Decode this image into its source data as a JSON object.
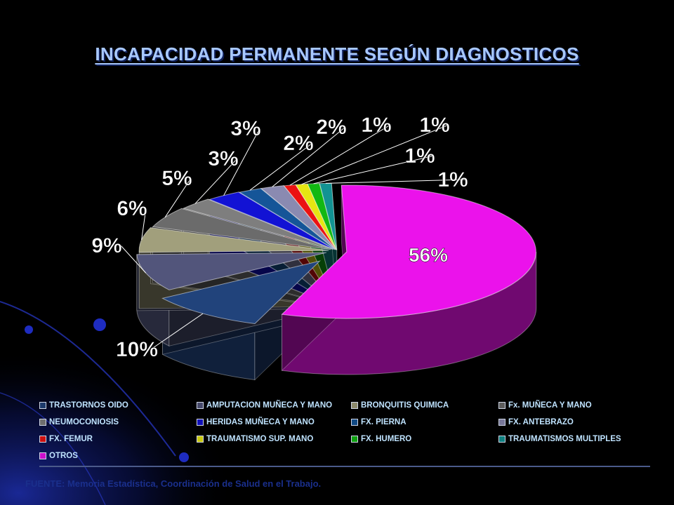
{
  "title": "INCAPACIDAD  PERMANENTE  SEGÚN  DIAGNOSTICOS",
  "source": "FUENTE: Memoria Estadística, Coordinación de Salud en el Trabajo.",
  "colors": {
    "background": "#000000",
    "title": "#a8c8ff",
    "legend_text": "#bfe3ff",
    "source_text": "#1a2f8c"
  },
  "chart_data": {
    "type": "pie",
    "style": "3d-exploded",
    "title": "",
    "legend_position": "bottom",
    "series": [
      {
        "name": "TRASTORNOS OIDO",
        "value": 10,
        "label": "10%",
        "color": "#1d3a6b"
      },
      {
        "name": "AMPUTACION MUÑECA Y MANO",
        "value": 9,
        "label": "9%",
        "color": "#474a6b"
      },
      {
        "name": "BRONQUITIS QUIMICA",
        "value": 6,
        "label": "6%",
        "color": "#8c8a6c"
      },
      {
        "name": "Fx. MUÑECA Y MANO",
        "value": 5,
        "label": "5%",
        "color": "#5d5d5d"
      },
      {
        "name": "NEUMOCONIOSIS",
        "value": 3,
        "label": "3%",
        "color": "#6e6e6e"
      },
      {
        "name": "HERIDAS MUÑECA Y MANO",
        "value": 3,
        "label": "3%",
        "color": "#1010b8"
      },
      {
        "name": "FX. PIERNA",
        "value": 2,
        "label": "2%",
        "color": "#124a84"
      },
      {
        "name": "FX. ANTEBRAZO",
        "value": 2,
        "label": "2%",
        "color": "#78789a"
      },
      {
        "name": "FX. FEMUR",
        "value": 1,
        "label": "1%",
        "color": "#cc1010"
      },
      {
        "name": "TRAUMATISMO SUP. MANO",
        "value": 1,
        "label": "1%",
        "color": "#c8c810"
      },
      {
        "name": "FX. HUMERO",
        "value": 1,
        "label": "1%",
        "color": "#10a010"
      },
      {
        "name": "TRAUMATISMOS MULTIPLES",
        "value": 1,
        "label": "1%",
        "color": "#108080"
      },
      {
        "name": "OTROS",
        "value": 56,
        "label": "56%",
        "color": "#cc10cc"
      }
    ]
  }
}
